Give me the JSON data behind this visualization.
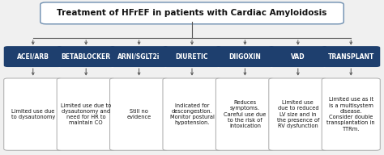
{
  "title": "Treatment of HFrEF in patients with Cardiac Amyloidosis",
  "title_bg": "#ffffff",
  "title_border": "#6b8cae",
  "box_bg": "#1e3f6e",
  "box_text_color": "#ffffff",
  "desc_bg": "#ffffff",
  "desc_border": "#aaaaaa",
  "arrow_color": "#555555",
  "categories": [
    "ACEI/ARB",
    "BETABLOCKER",
    "ARNI/SGLT2i",
    "DIURETIC",
    "DIIGOXIN",
    "VAD",
    "TRANSPLANT"
  ],
  "descriptions": [
    "Limited use due\nto dysautonomy",
    "Limited use due to\ndysautonomy and\nneed for HR to\nmaintain CO",
    "Still no\nevidence",
    "Indicated for\ndescongestion.\nMonitor postural\nhypotension.",
    "Reduces\nsymptoms.\nCareful use due\nto the risk of\nintoxication",
    "Limited use\ndue to reduced\nLV size and in\nthe presence of\nRV dysfunction",
    "Limited use as it\nis a multisystem\ndisease.\nConsider double\ntransplantation in\nTTRm."
  ],
  "fig_bg": "#f0f0f0",
  "font_size_title": 7.5,
  "font_size_box": 5.5,
  "font_size_desc": 4.8
}
